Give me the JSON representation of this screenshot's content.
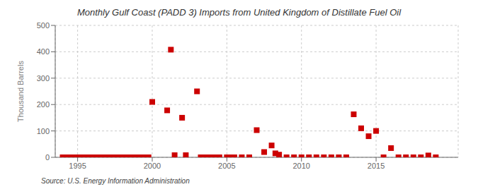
{
  "chart_data": {
    "type": "scatter",
    "title": "Monthly Gulf Coast (PADD 3) Imports from United Kingdom of Distillate Fuel Oil",
    "y_label": "Thousand Barrels",
    "source": "Source: U.S. Energy Information Administration",
    "color": "#cc0000",
    "marker": "square",
    "grid": true,
    "xlim": [
      1993.5,
      2020.5
    ],
    "ylim": [
      0,
      500
    ],
    "xticks": [
      1995,
      2000,
      2005,
      2010,
      2015
    ],
    "yticks": [
      0,
      100,
      200,
      300,
      400,
      500
    ],
    "x": [
      1994.0,
      1994.25,
      1994.5,
      1994.75,
      1995.0,
      1995.25,
      1995.5,
      1995.75,
      1996.0,
      1996.25,
      1996.5,
      1996.75,
      1997.0,
      1997.25,
      1997.5,
      1997.75,
      1998.0,
      1998.25,
      1998.5,
      1998.75,
      1999.0,
      1999.25,
      1999.5,
      1999.75,
      2000.0,
      2001.0,
      2001.25,
      2001.5,
      2002.0,
      2002.25,
      2003.0,
      2003.25,
      2003.5,
      2003.75,
      2004.0,
      2004.25,
      2004.5,
      2005.0,
      2005.25,
      2005.5,
      2006.0,
      2006.5,
      2007.0,
      2007.5,
      2008.0,
      2008.25,
      2008.5,
      2009.0,
      2009.5,
      2010.0,
      2010.5,
      2011.0,
      2011.5,
      2012.0,
      2012.5,
      2013.0,
      2013.5,
      2014.0,
      2014.5,
      2015.0,
      2015.5,
      2016.0,
      2016.5,
      2017.0,
      2017.5,
      2018.0,
      2018.5,
      2019.0
    ],
    "values": [
      0,
      0,
      0,
      0,
      0,
      0,
      0,
      0,
      0,
      0,
      0,
      0,
      0,
      0,
      0,
      0,
      0,
      0,
      0,
      0,
      0,
      0,
      0,
      0,
      210,
      178,
      408,
      8,
      150,
      8,
      250,
      0,
      0,
      0,
      0,
      0,
      0,
      0,
      0,
      0,
      0,
      0,
      103,
      20,
      45,
      15,
      10,
      0,
      0,
      0,
      0,
      0,
      0,
      0,
      0,
      0,
      163,
      110,
      80,
      100,
      0,
      35,
      0,
      0,
      0,
      0,
      7,
      0
    ]
  }
}
